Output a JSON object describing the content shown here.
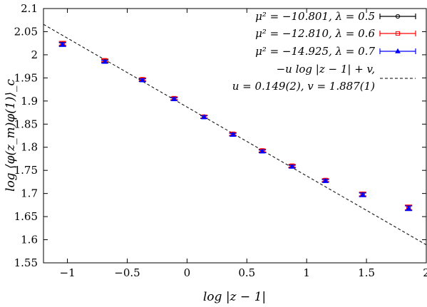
{
  "chart_data": {
    "type": "scatter",
    "xlabel": "log |z − 1|",
    "ylabel": "log ⟨φ(z_m)φ(1)⟩_c",
    "xlim": [
      -1.2,
      2
    ],
    "ylim": [
      1.55,
      2.1
    ],
    "xticks": [
      "−1",
      "−0.5",
      "0",
      "0.5",
      "1",
      "1.5",
      "2"
    ],
    "xtick_values": [
      -1,
      -0.5,
      0,
      0.5,
      1,
      1.5,
      2
    ],
    "yticks": [
      "1.55",
      "1.6",
      "1.65",
      "1.7",
      "1.75",
      "1.8",
      "1.85",
      "1.9",
      "1.95",
      "2",
      "2.05",
      "2.1"
    ],
    "ytick_values": [
      1.55,
      1.6,
      1.65,
      1.7,
      1.75,
      1.8,
      1.85,
      1.9,
      1.95,
      2.0,
      2.05,
      2.1
    ],
    "x": [
      -1.041,
      -0.687,
      -0.373,
      -0.108,
      0.142,
      0.383,
      0.629,
      0.878,
      1.157,
      1.468,
      1.852
    ],
    "series": [
      {
        "name": "μ² = −10.801, λ = 0.5",
        "color": "#000000",
        "marker": "circle",
        "values": [
          2.023,
          1.986,
          1.946,
          1.905,
          1.866,
          1.828,
          1.792,
          1.759,
          1.728,
          1.698,
          1.669
        ],
        "errors": [
          0.004,
          0.003,
          0.003,
          0.003,
          0.003,
          0.003,
          0.003,
          0.003,
          0.003,
          0.004,
          0.005
        ]
      },
      {
        "name": "μ² = −12.810, λ = 0.6",
        "color": "#ff0000",
        "marker": "square",
        "values": [
          2.025,
          1.988,
          1.947,
          1.906,
          1.866,
          1.829,
          1.793,
          1.76,
          1.729,
          1.699,
          1.67
        ],
        "errors": [
          0.004,
          0.003,
          0.003,
          0.003,
          0.003,
          0.003,
          0.003,
          0.003,
          0.003,
          0.004,
          0.005
        ]
      },
      {
        "name": "μ² = −14.925, λ = 0.7",
        "color": "#0000ff",
        "marker": "triangle",
        "values": [
          2.022,
          1.985,
          1.945,
          1.904,
          1.865,
          1.827,
          1.791,
          1.758,
          1.727,
          1.697,
          1.668
        ],
        "errors": [
          0.004,
          0.003,
          0.003,
          0.003,
          0.003,
          0.003,
          0.003,
          0.003,
          0.003,
          0.004,
          0.005
        ]
      }
    ],
    "fit": {
      "legend_line1": "−u log |z − 1| + v,",
      "legend_line2": "u = 0.149(2), v = 1.887(1)",
      "u": 0.149,
      "v": 1.887,
      "style": "dashed",
      "color": "#000000"
    },
    "legend_position": "top-right",
    "grid": false
  }
}
